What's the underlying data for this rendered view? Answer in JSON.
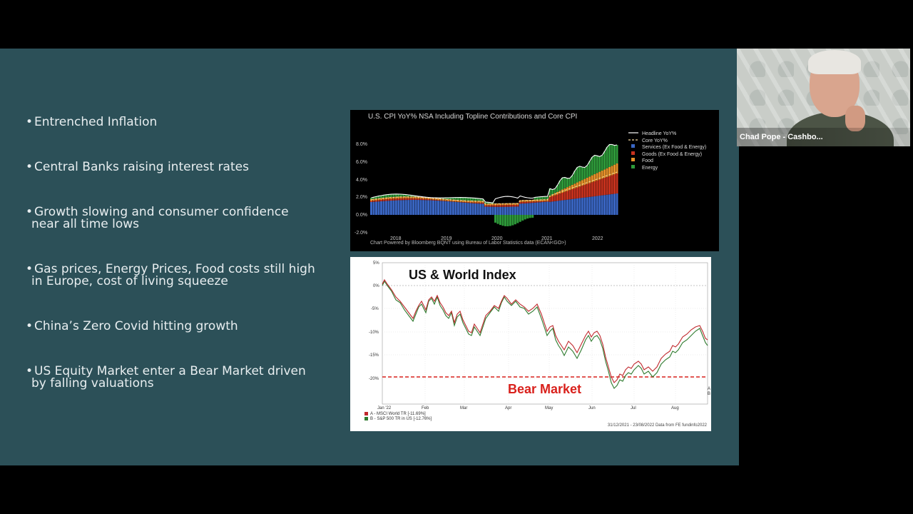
{
  "bullets": [
    {
      "text": "Entrenched Inflation",
      "cont": ""
    },
    {
      "text": "Central Banks raising interest rates",
      "cont": ""
    },
    {
      "text": "Growth slowing and consumer confidence",
      "cont": "near all time lows"
    },
    {
      "text": "Gas prices, Energy Prices, Food costs still high",
      "cont": "in Europe, cost of living squeeze"
    },
    {
      "text": "China’s Zero Covid hitting growth",
      "cont": ""
    },
    {
      "text": "US Equity Market enter a Bear Market driven",
      "cont": "by falling valuations"
    }
  ],
  "bullet_symbol": "•",
  "cpi_chart": {
    "title": "U.S. CPI YoY% NSA Including Topline Contributions and Core CPI",
    "footer": "Chart Powered by Bloomberg BQNT using Bureau of Labor Statistics data   (ECAN<GO>)",
    "y_ticks": [
      "8.0%",
      "6.0%",
      "4.0%",
      "2.0%",
      "0.0%",
      "-2.0%"
    ],
    "x_ticks": [
      "2018",
      "2019",
      "2020",
      "2021",
      "2022"
    ],
    "legend": [
      "Headline YoY%",
      "Core YoY%",
      "Services (Ex Food & Energy)",
      "Goods (Ex Food & Energy)",
      "Food",
      "Energy"
    ],
    "colors": {
      "services": "#3a66c4",
      "goods": "#c8321e",
      "food": "#e8922a",
      "energy": "#2e9a3a",
      "headline": "#ffffff",
      "core": "#f2d8a0"
    }
  },
  "index_chart": {
    "title": "US & World Index",
    "annotation": "Bear Market",
    "y_ticks": [
      "5%",
      "0%",
      "-5%",
      "-10%",
      "-15%",
      "-20%"
    ],
    "x_ticks": [
      "Jan '22",
      "Feb",
      "Mar",
      "Apr",
      "May",
      "Jun",
      "Jul",
      "Aug"
    ],
    "series_a": "A - MSCI World TR [-11.69%]",
    "series_b": "B - S&P 500 TR in US [-12.76%]",
    "footer": "31/12/2021 - 23/08/2022 Data from FE fundinfo2022",
    "end_labels": [
      "A",
      "B"
    ],
    "colors": {
      "a": "#c0282d",
      "b": "#2e7a2e",
      "bear_line": "#d9211c"
    }
  },
  "video": {
    "name": "Chad Pope - Cashbo..."
  }
}
